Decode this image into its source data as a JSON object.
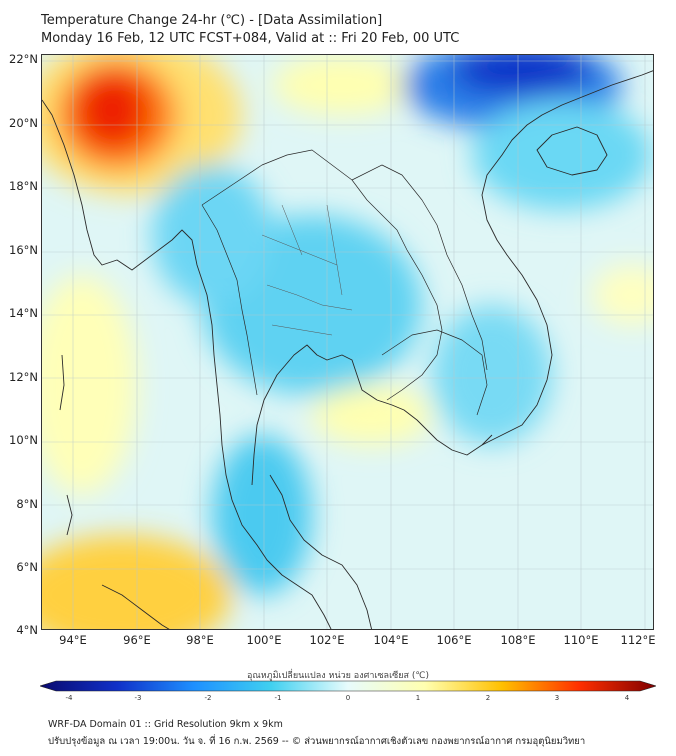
{
  "header": {
    "title_line1": "Temperature Change 24-hr (℃) - [Data Assimilation]",
    "title_line2": "Monday 16 Feb, 12 UTC FCST+084, Valid at :: Fri 20 Feb, 00 UTC"
  },
  "map": {
    "lat_labels": [
      "22°N",
      "20°N",
      "18°N",
      "16°N",
      "14°N",
      "12°N",
      "10°N",
      "8°N",
      "6°N",
      "4°N"
    ],
    "lon_labels": [
      "94°E",
      "96°E",
      "98°E",
      "100°E",
      "102°E",
      "104°E",
      "106°E",
      "108°E",
      "110°E",
      "112°E"
    ],
    "lat_range": [
      4,
      22
    ],
    "lon_range": [
      93,
      112.2
    ],
    "background_color": "#dff6f6"
  },
  "colorbar": {
    "title": "อุณหภูมิเปลี่ยนแปลง หน่วย องศาเซลเซียส (℃)",
    "ticks": [
      "-4",
      "-3",
      "-2",
      "-1",
      "0",
      "1",
      "2",
      "3",
      "4"
    ],
    "range": [
      -4,
      4
    ],
    "colors": [
      "#0a0a6e",
      "#1030c8",
      "#1e90ff",
      "#40d0f0",
      "#e8fcfc",
      "#ffffb0",
      "#ffc000",
      "#ff3000",
      "#800000"
    ]
  },
  "footer": {
    "line1": "WRF-DA Domain 01 :: Grid Resolution 9km x 9km",
    "line2": "ปรับปรุงข้อมูล ณ เวลา 19:00น. วัน จ. ที่ 16 ก.พ. 2569 -- © ส่วนพยากรณ์อากาศเชิงตัวเลข กองพยากรณ์อากาศ กรมอุตุนิยมวิทยา"
  }
}
